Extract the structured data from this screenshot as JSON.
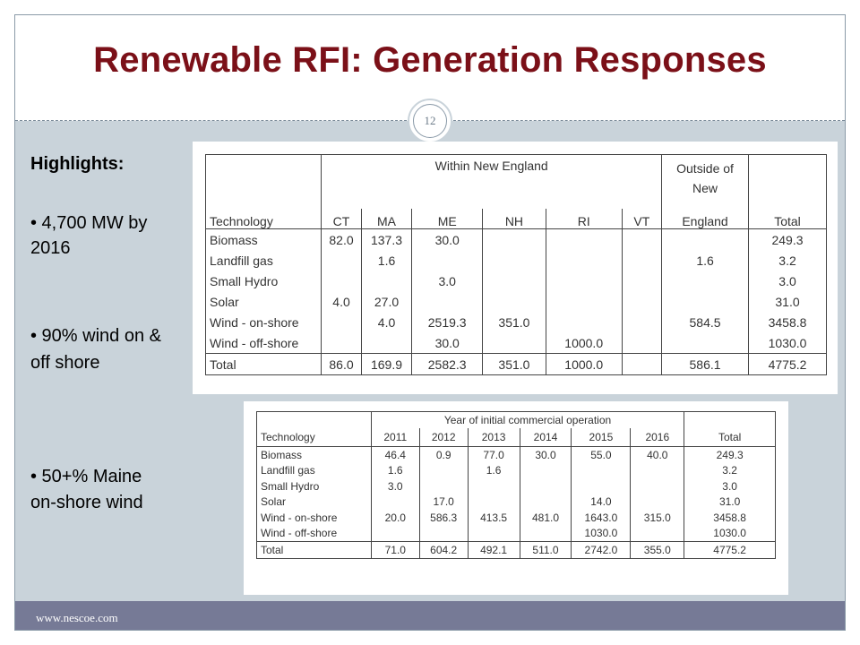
{
  "slide": {
    "title": "Renewable RFI: Generation Responses",
    "page_number": "12",
    "footer_url": "www.nescoe.com"
  },
  "highlights": {
    "heading": "Highlights:",
    "bullets": [
      "• 4,700 MW by 2016",
      "• 90% wind on & off shore",
      "• 50+% Maine on-shore wind"
    ]
  },
  "table_by_state": {
    "group_header": "Within New England",
    "outside_header": "Outside of New England",
    "columns": [
      "Technology",
      "CT",
      "MA",
      "ME",
      "NH",
      "RI",
      "VT",
      "England",
      "Total"
    ],
    "rows": [
      [
        "Biomass",
        "82.0",
        "137.3",
        "30.0",
        "",
        "",
        "",
        "",
        "249.3"
      ],
      [
        "Landfill gas",
        "",
        "1.6",
        "",
        "",
        "",
        "",
        "1.6",
        "3.2"
      ],
      [
        "Small Hydro",
        "",
        "",
        "3.0",
        "",
        "",
        "",
        "",
        "3.0"
      ],
      [
        "Solar",
        "4.0",
        "27.0",
        "",
        "",
        "",
        "",
        "",
        "31.0"
      ],
      [
        "Wind - on-shore",
        "",
        "4.0",
        "2519.3",
        "351.0",
        "",
        "",
        "584.5",
        "3458.8"
      ],
      [
        "Wind - off-shore",
        "",
        "",
        "30.0",
        "",
        "1000.0",
        "",
        "",
        "1030.0"
      ]
    ],
    "total_row": [
      "Total",
      "86.0",
      "169.9",
      "2582.3",
      "351.0",
      "1000.0",
      "",
      "586.1",
      "4775.2"
    ]
  },
  "table_by_year": {
    "group_header": "Year of initial commercial operation",
    "columns": [
      "Technology",
      "2011",
      "2012",
      "2013",
      "2014",
      "2015",
      "2016",
      "Total"
    ],
    "rows": [
      [
        "Biomass",
        "46.4",
        "0.9",
        "77.0",
        "30.0",
        "55.0",
        "40.0",
        "249.3"
      ],
      [
        "Landfill gas",
        "1.6",
        "",
        "1.6",
        "",
        "",
        "",
        "3.2"
      ],
      [
        "Small Hydro",
        "3.0",
        "",
        "",
        "",
        "",
        "",
        "3.0"
      ],
      [
        "Solar",
        "",
        "17.0",
        "",
        "",
        "14.0",
        "",
        "31.0"
      ],
      [
        "Wind - on-shore",
        "20.0",
        "586.3",
        "413.5",
        "481.0",
        "1643.0",
        "315.0",
        "3458.8"
      ],
      [
        "Wind - off-shore",
        "",
        "",
        "",
        "",
        "1030.0",
        "",
        "1030.0"
      ]
    ],
    "total_row": [
      "Total",
      "71.0",
      "604.2",
      "492.1",
      "511.0",
      "2742.0",
      "355.0",
      "4775.2"
    ]
  },
  "colors": {
    "title": "#7b1018",
    "background": "#c9d3da",
    "footer_bar": "#767a96"
  }
}
